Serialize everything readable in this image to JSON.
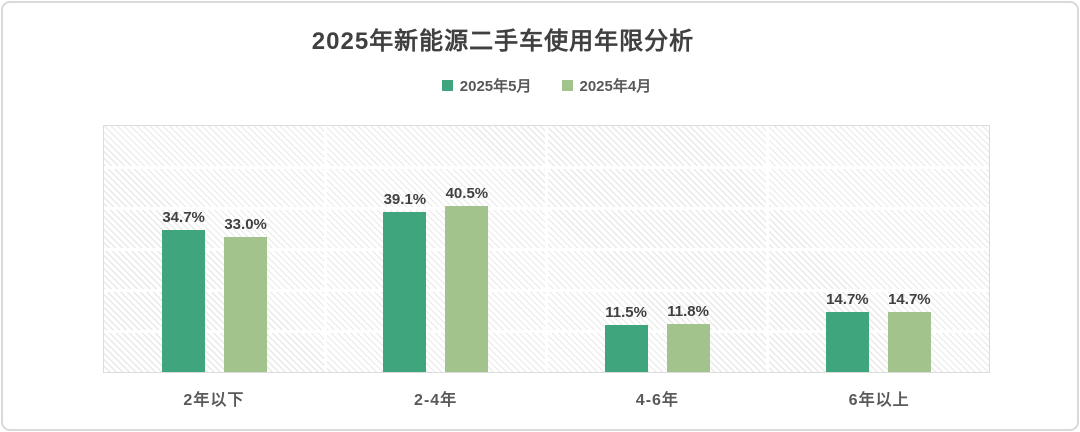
{
  "card": {
    "title": "2025年新能源二手车使用年限分析"
  },
  "chart_data": {
    "type": "bar",
    "title": "2025年新能源二手车使用年限分析",
    "categories": [
      "2年以下",
      "2-4年",
      "4-6年",
      "6年以上"
    ],
    "series": [
      {
        "name": "2025年5月",
        "color": "#3fa57d",
        "values": [
          34.7,
          39.1,
          11.5,
          14.7
        ]
      },
      {
        "name": "2025年4月",
        "color": "#a2c38c",
        "values": [
          33.0,
          40.5,
          11.8,
          14.7
        ]
      }
    ],
    "data_labels": [
      "34.7%",
      "33.0%",
      "39.1%",
      "40.5%",
      "11.5%",
      "11.8%",
      "14.7%",
      "14.7%"
    ],
    "value_suffix": "%",
    "ylim": [
      0,
      60
    ],
    "gridline_step": 10,
    "grid": "horizontal-and-category-boundaries",
    "legend_position": "top",
    "plot_background": "diagonal-hatch"
  },
  "colors": {
    "series_may": "#3fa57d",
    "series_april": "#a2c38c",
    "title_text": "#404040",
    "label_text": "#404040",
    "axis_text": "#595959",
    "hatch_line": "#e9e9e9",
    "gridline": "#ffffff",
    "card_border": "#d9d9d9",
    "card_background": "#ffffff"
  }
}
